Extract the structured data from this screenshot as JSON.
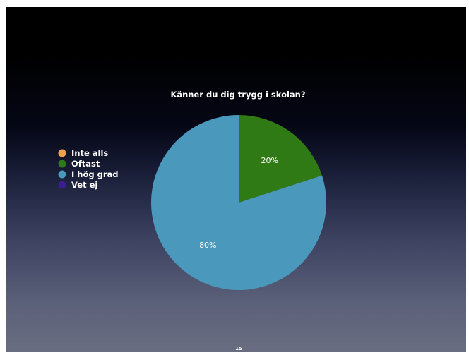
{
  "slide": {
    "page_number": "15"
  },
  "chart_data": {
    "type": "pie",
    "title": "Känner du dig trygg i skolan?",
    "categories": [
      "Inte alls",
      "Oftast",
      "I hög grad",
      "Vet ej"
    ],
    "values": [
      0,
      20,
      80,
      0
    ],
    "value_labels": [
      "",
      "20%",
      "80%",
      ""
    ],
    "colors": [
      "#f0a24a",
      "#2f7a14",
      "#4a98bb",
      "#3a1f8c"
    ],
    "legend_placement": "left"
  }
}
